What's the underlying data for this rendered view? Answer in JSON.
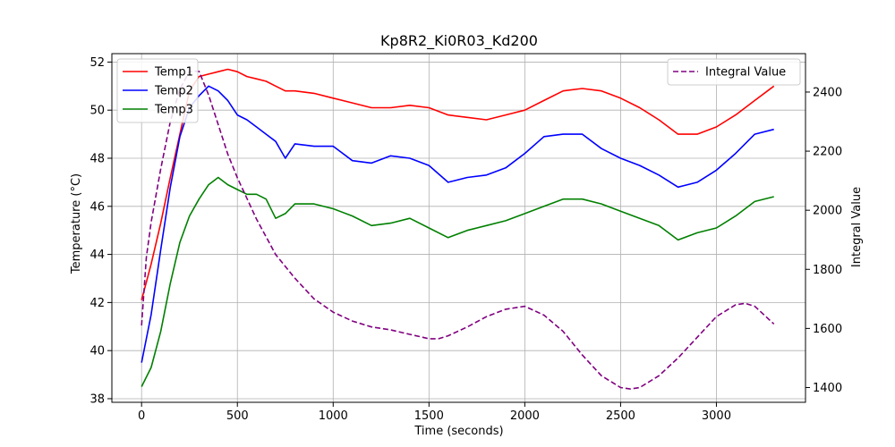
{
  "chart_data": {
    "type": "line",
    "title": "Kp8R2_Ki0R03_Kd200",
    "xlabel": "Time (seconds)",
    "ylabel": "Temperature (°C)",
    "y2label": "Integral Value",
    "xlim": [
      -155,
      3465
    ],
    "ylim": [
      37.85,
      52.35
    ],
    "y2lim": [
      1350,
      2530
    ],
    "xticks": [
      0,
      500,
      1000,
      1500,
      2000,
      2500,
      3000
    ],
    "yticks": [
      38,
      40,
      42,
      44,
      46,
      48,
      50,
      52
    ],
    "y2ticks": [
      1400,
      1600,
      1800,
      2000,
      2200,
      2400
    ],
    "grid": true,
    "legend_left": "top-left",
    "legend_right": "top-right",
    "series": [
      {
        "name": "Temp1",
        "axis": "left",
        "color": "#ff0000",
        "dash": "solid",
        "x": [
          0,
          50,
          100,
          150,
          200,
          250,
          300,
          350,
          400,
          450,
          500,
          550,
          600,
          650,
          700,
          750,
          800,
          900,
          1000,
          1100,
          1200,
          1300,
          1400,
          1500,
          1600,
          1700,
          1800,
          1900,
          2000,
          2100,
          2200,
          2300,
          2400,
          2500,
          2600,
          2700,
          2800,
          2900,
          3000,
          3100,
          3200,
          3300
        ],
        "y": [
          42.1,
          43.6,
          45.3,
          47.2,
          49.0,
          50.8,
          51.4,
          51.5,
          51.6,
          51.7,
          51.6,
          51.4,
          51.3,
          51.2,
          51.0,
          50.8,
          50.8,
          50.7,
          50.5,
          50.3,
          50.1,
          50.1,
          50.2,
          50.1,
          49.8,
          49.7,
          49.6,
          49.8,
          50.0,
          50.4,
          50.8,
          50.9,
          50.8,
          50.5,
          50.1,
          49.6,
          49.0,
          49.0,
          49.3,
          49.8,
          50.4,
          51.0
        ]
      },
      {
        "name": "Temp2",
        "axis": "left",
        "color": "#0000ff",
        "dash": "solid",
        "x": [
          0,
          50,
          100,
          150,
          200,
          250,
          300,
          350,
          400,
          450,
          500,
          550,
          600,
          650,
          700,
          750,
          800,
          900,
          1000,
          1100,
          1200,
          1300,
          1400,
          1500,
          1600,
          1700,
          1800,
          1900,
          2000,
          2100,
          2200,
          2300,
          2400,
          2500,
          2600,
          2700,
          2800,
          2900,
          3000,
          3100,
          3200,
          3300
        ],
        "y": [
          39.5,
          41.5,
          44.2,
          46.8,
          48.9,
          50.1,
          50.6,
          51.0,
          50.8,
          50.4,
          49.8,
          49.6,
          49.3,
          49.0,
          48.7,
          48.0,
          48.6,
          48.5,
          48.5,
          47.9,
          47.8,
          48.1,
          48.0,
          47.7,
          47.0,
          47.2,
          47.3,
          47.6,
          48.2,
          48.9,
          49.0,
          49.0,
          48.4,
          48.0,
          47.7,
          47.3,
          46.8,
          47.0,
          47.5,
          48.2,
          49.0,
          49.2
        ]
      },
      {
        "name": "Temp3",
        "axis": "left",
        "color": "#008000",
        "dash": "solid",
        "x": [
          0,
          50,
          100,
          150,
          200,
          250,
          300,
          350,
          400,
          450,
          500,
          550,
          600,
          650,
          700,
          750,
          800,
          900,
          1000,
          1100,
          1200,
          1300,
          1400,
          1500,
          1600,
          1700,
          1800,
          1900,
          2000,
          2100,
          2200,
          2300,
          2400,
          2500,
          2600,
          2700,
          2800,
          2900,
          3000,
          3100,
          3200,
          3300
        ],
        "y": [
          38.5,
          39.3,
          40.8,
          42.8,
          44.5,
          45.6,
          46.3,
          46.9,
          47.2,
          46.9,
          46.7,
          46.5,
          46.5,
          46.3,
          45.5,
          45.7,
          46.1,
          46.1,
          45.9,
          45.6,
          45.2,
          45.3,
          45.5,
          45.1,
          44.7,
          45.0,
          45.2,
          45.4,
          45.7,
          46.0,
          46.3,
          46.3,
          46.1,
          45.8,
          45.5,
          45.2,
          44.6,
          44.9,
          45.1,
          45.6,
          46.2,
          46.4
        ]
      },
      {
        "name": "Integral Value",
        "axis": "right",
        "color": "#800080",
        "dash": "dashed",
        "x": [
          0,
          25,
          50,
          100,
          150,
          200,
          250,
          300,
          350,
          400,
          450,
          500,
          550,
          600,
          700,
          800,
          900,
          1000,
          1100,
          1200,
          1300,
          1400,
          1500,
          1550,
          1600,
          1700,
          1800,
          1900,
          2000,
          2100,
          2200,
          2300,
          2400,
          2500,
          2550,
          2600,
          2700,
          2800,
          2900,
          3000,
          3100,
          3150,
          3200,
          3300
        ],
        "y": [
          1610,
          1840,
          1960,
          2140,
          2300,
          2410,
          2470,
          2470,
          2390,
          2290,
          2190,
          2110,
          2040,
          1970,
          1850,
          1770,
          1700,
          1655,
          1625,
          1605,
          1595,
          1580,
          1565,
          1565,
          1575,
          1605,
          1640,
          1665,
          1675,
          1645,
          1590,
          1510,
          1440,
          1400,
          1395,
          1400,
          1440,
          1500,
          1570,
          1640,
          1680,
          1685,
          1675,
          1615
        ]
      }
    ]
  }
}
